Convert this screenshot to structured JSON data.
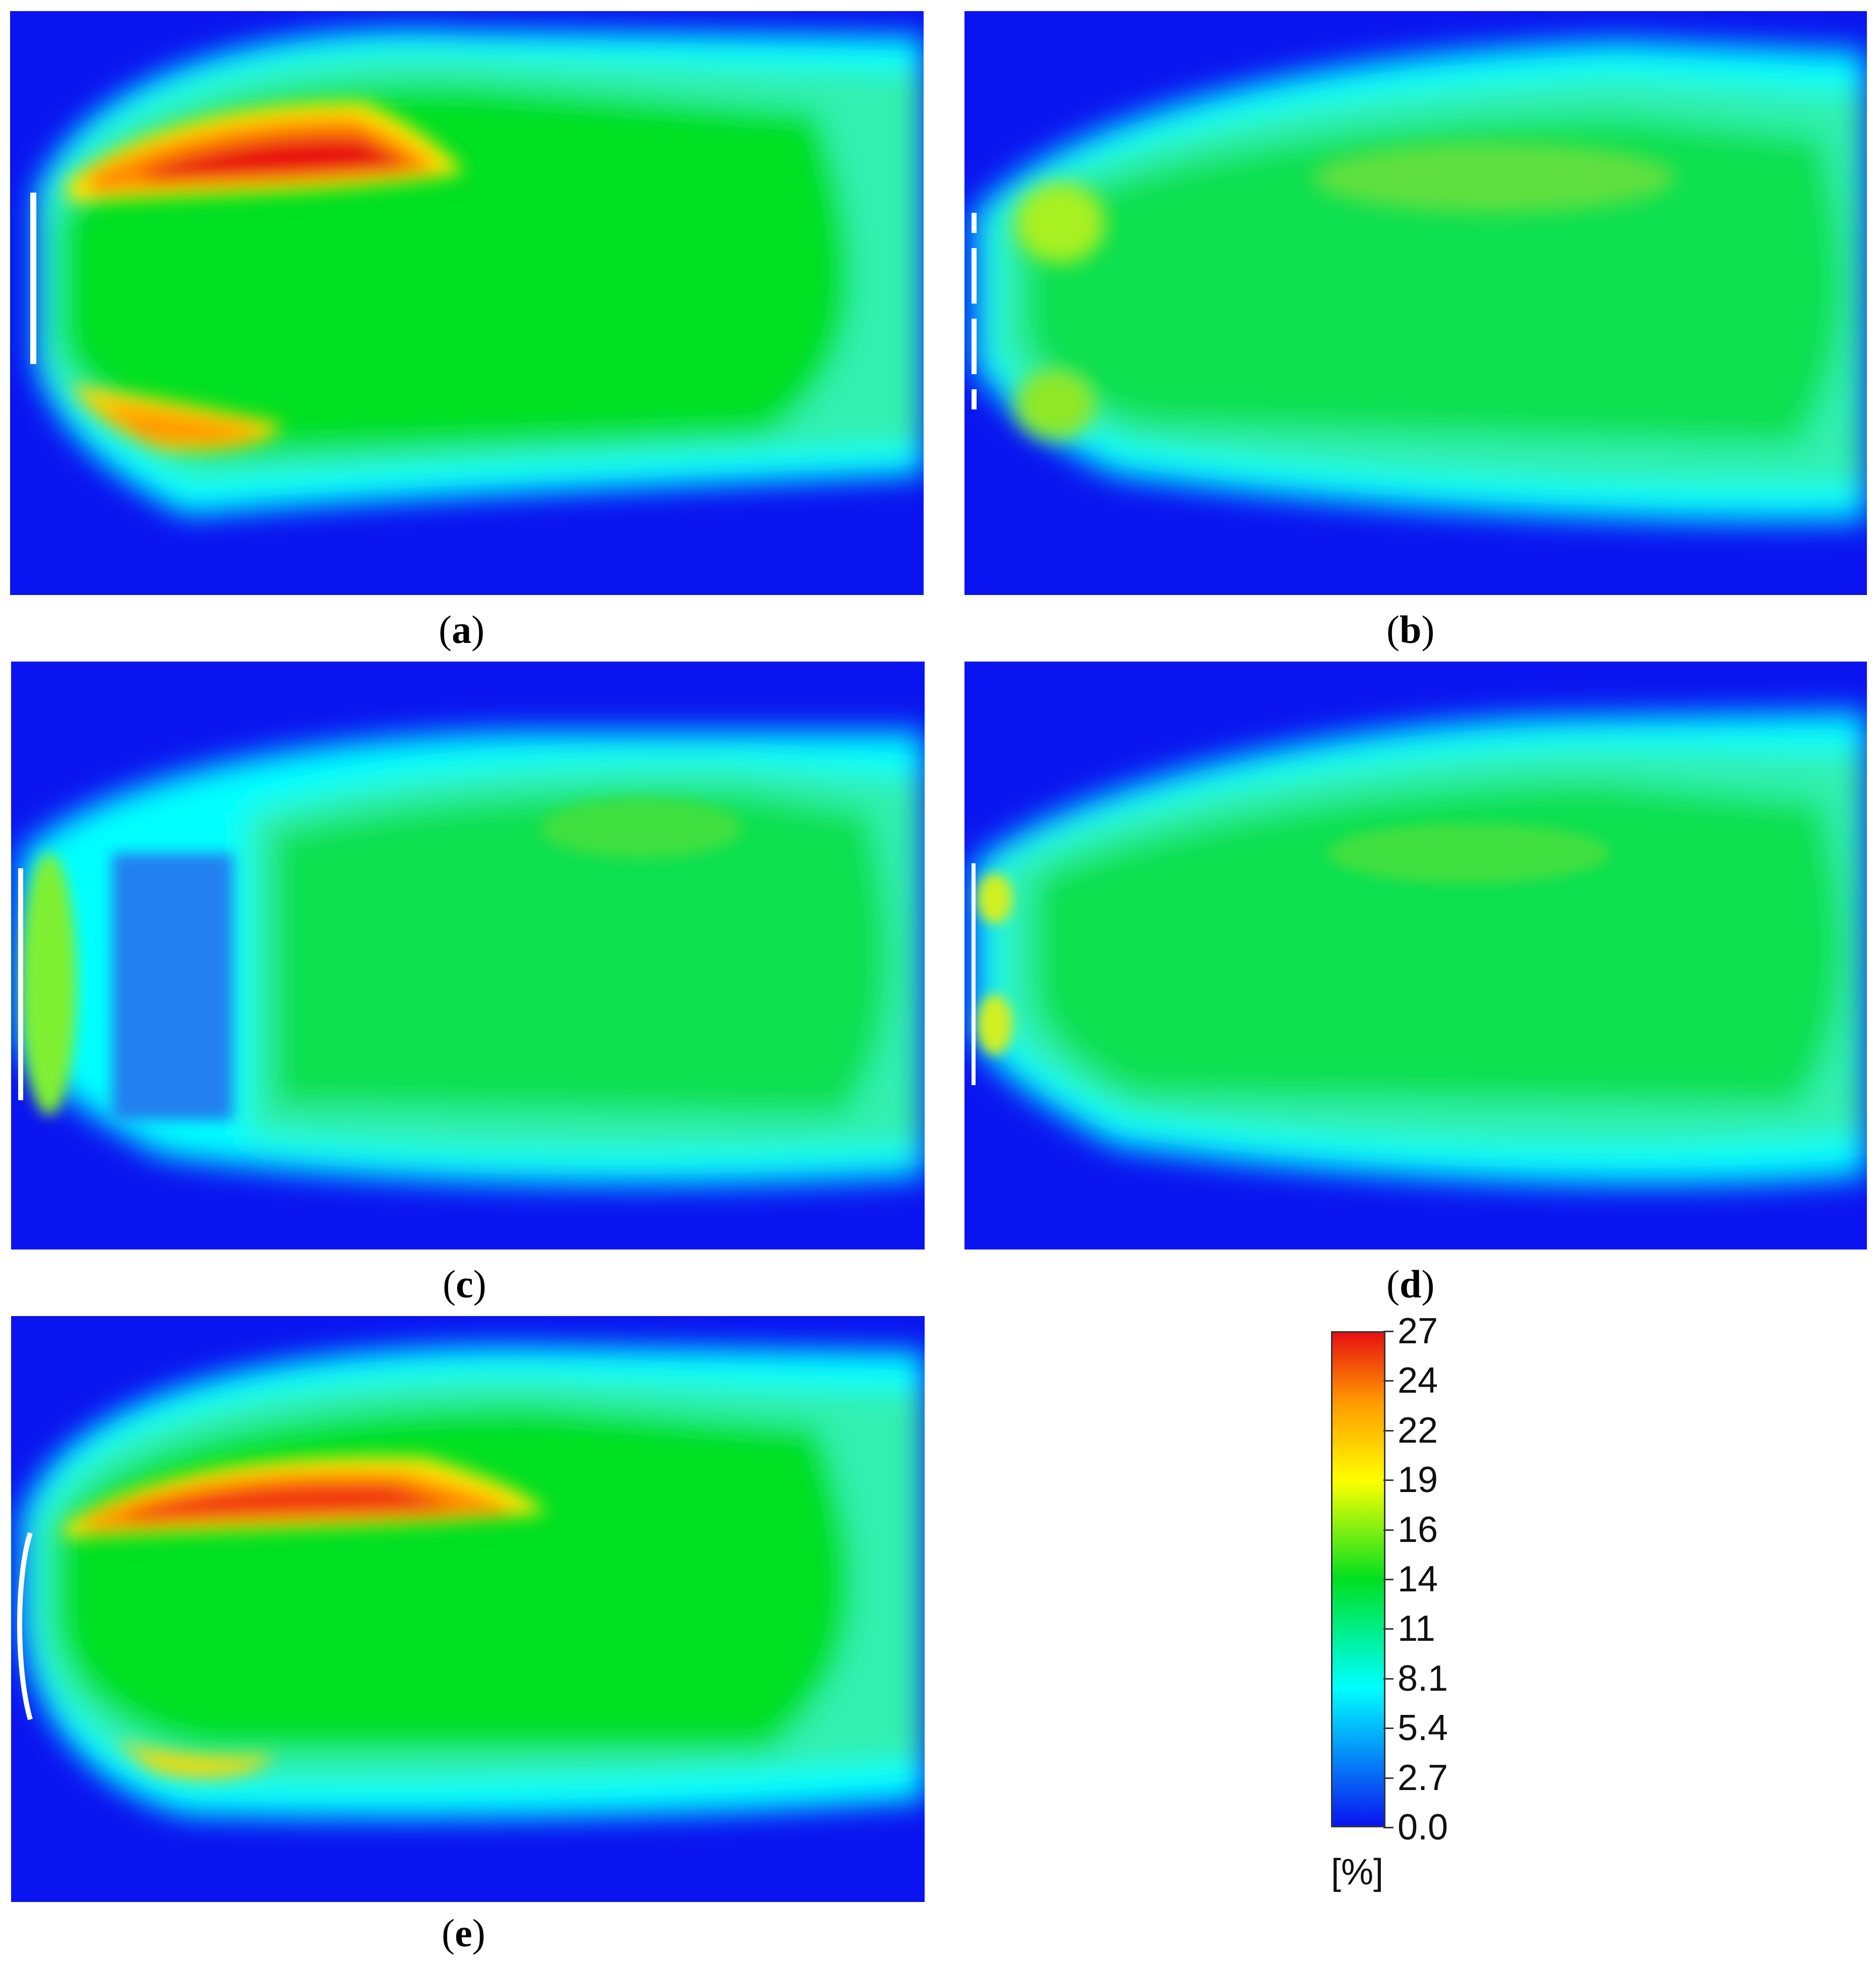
{
  "panels": [
    {
      "id": "a",
      "letter": "a"
    },
    {
      "id": "b",
      "letter": "b"
    },
    {
      "id": "c",
      "letter": "c"
    },
    {
      "id": "d",
      "letter": "d"
    },
    {
      "id": "e",
      "letter": "e"
    }
  ],
  "captions": {
    "a": "a",
    "b": "b",
    "c": "c",
    "d": "d",
    "e": "e"
  },
  "colorbar": {
    "ticks": [
      "27",
      "24",
      "22",
      "19",
      "16",
      "14",
      "11",
      "8.1",
      "5.4",
      "2.7",
      "0.0"
    ],
    "unit": "[%]",
    "min": 0.0,
    "max": 27,
    "colors": {
      "low": "#0a14f0",
      "cyan": "#00ffff",
      "mid": "#00e020",
      "yellow": "#ffff00",
      "orange": "#ff9900",
      "high": "#e81010"
    }
  }
}
